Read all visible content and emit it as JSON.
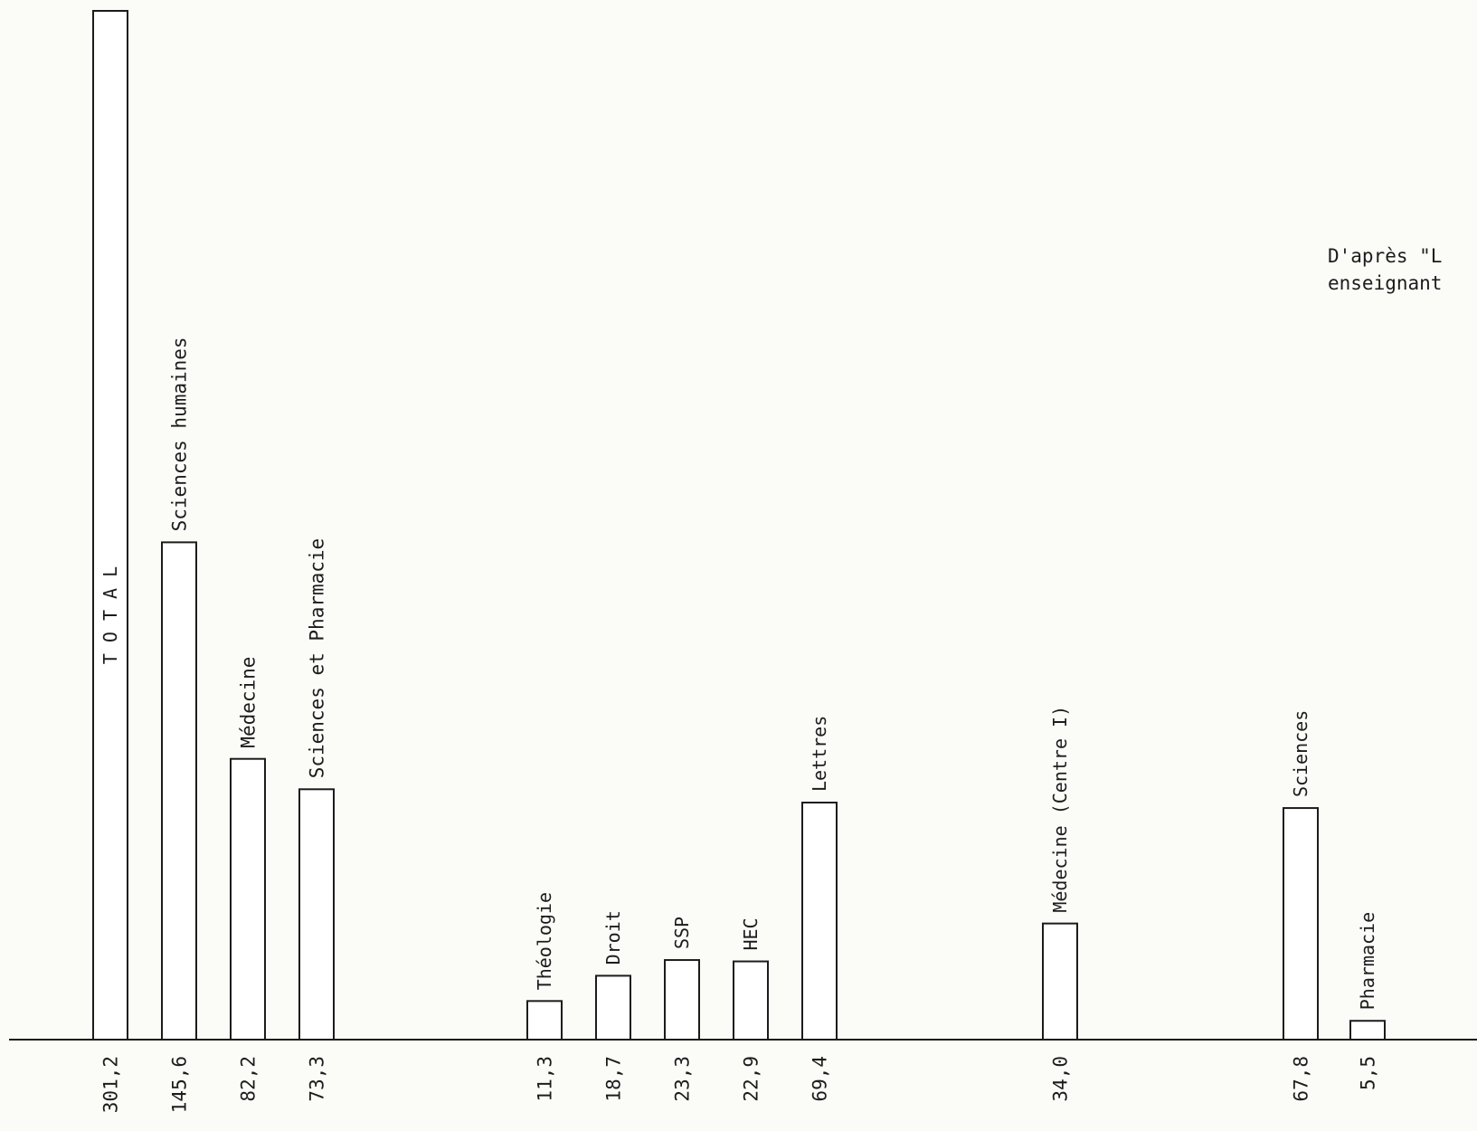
{
  "source_note": {
    "line1": "D'après \"L",
    "line2": "enseignant"
  },
  "colors": {
    "ink": "#1c1c1c",
    "paper": "#fbfbf8",
    "bar_fill": "#ffffff"
  },
  "chart_data": {
    "type": "bar",
    "title": "",
    "xlabel": "",
    "ylabel": "",
    "ylim": [
      0,
      301.2
    ],
    "grid": false,
    "categories": [
      "T O T A L",
      "Sciences humaines",
      "Médecine",
      "Sciences et Pharmacie",
      "Théologie",
      "Droit",
      "SSP",
      "HEC",
      "Lettres",
      "Médecine (Centre I)",
      "Sciences",
      "Pharmacie"
    ],
    "values": [
      301.2,
      145.6,
      82.2,
      73.3,
      11.3,
      18.7,
      23.3,
      22.9,
      69.4,
      34.0,
      67.8,
      5.5
    ],
    "value_labels": [
      "301,2",
      "145,6",
      "82,2",
      "73,3",
      "11,3",
      "18,7",
      "23,3",
      "22,9",
      "69,4",
      "34,0",
      "67,8",
      "5,5"
    ]
  }
}
